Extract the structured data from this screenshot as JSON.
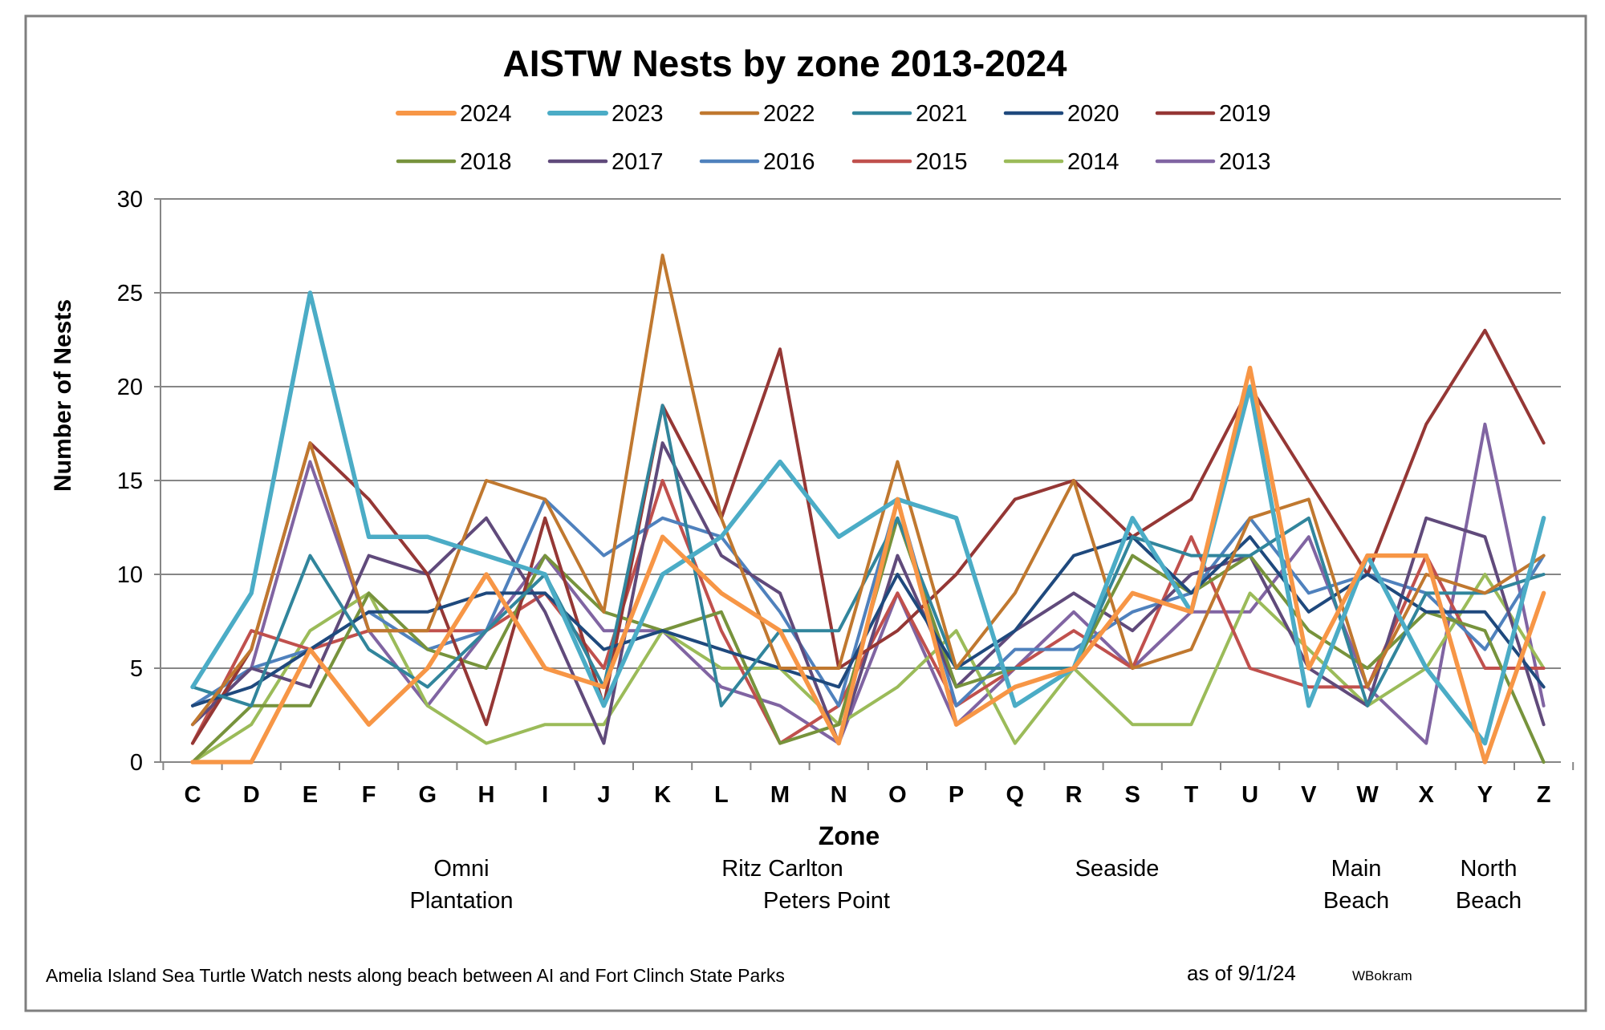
{
  "chart_data": {
    "type": "line",
    "title": "AISTW Nests by zone 2013-2024",
    "xlabel": "Zone",
    "ylabel": "Number of Nests",
    "ylim": [
      0,
      30
    ],
    "yticks": [
      0,
      5,
      10,
      15,
      20,
      25,
      30
    ],
    "grid": "horizontal",
    "legend_position": "top",
    "categories": [
      "C",
      "D",
      "E",
      "F",
      "G",
      "H",
      "I",
      "J",
      "K",
      "L",
      "M",
      "N",
      "O",
      "P",
      "Q",
      "R",
      "S",
      "T",
      "U",
      "V",
      "W",
      "X",
      "Y",
      "Z"
    ],
    "series": [
      {
        "name": "2024",
        "color": "#F79646",
        "values": [
          0,
          0,
          6,
          2,
          5,
          10,
          5,
          4,
          12,
          9,
          7,
          1,
          14,
          2,
          4,
          5,
          9,
          8,
          21,
          5,
          11,
          11,
          0,
          9
        ]
      },
      {
        "name": "2023",
        "color": "#4BACC6",
        "values": [
          4,
          9,
          25,
          12,
          12,
          11,
          10,
          3,
          10,
          12,
          16,
          12,
          14,
          13,
          3,
          5,
          13,
          8,
          20,
          3,
          11,
          5,
          1,
          13
        ]
      },
      {
        "name": "2022",
        "color": "#C0782F",
        "values": [
          2,
          6,
          17,
          7,
          7,
          15,
          14,
          8,
          27,
          13,
          5,
          5,
          16,
          5,
          9,
          15,
          5,
          6,
          13,
          14,
          4,
          10,
          9,
          11
        ]
      },
      {
        "name": "2021",
        "color": "#31859C",
        "values": [
          4,
          3,
          11,
          6,
          4,
          7,
          10,
          4,
          19,
          3,
          7,
          7,
          13,
          5,
          5,
          5,
          12,
          11,
          11,
          13,
          3,
          9,
          9,
          10
        ]
      },
      {
        "name": "2020",
        "color": "#1F497D",
        "values": [
          3,
          4,
          6,
          8,
          8,
          9,
          9,
          6,
          7,
          6,
          5,
          4,
          10,
          5,
          7,
          11,
          12,
          9,
          12,
          8,
          10,
          8,
          8,
          4
        ]
      },
      {
        "name": "2019",
        "color": "#953735",
        "values": [
          1,
          6,
          17,
          14,
          10,
          2,
          13,
          3,
          19,
          13,
          22,
          5,
          7,
          10,
          14,
          15,
          12,
          14,
          20,
          15,
          10,
          18,
          23,
          17
        ]
      },
      {
        "name": "2018",
        "color": "#77933C",
        "values": [
          0,
          3,
          3,
          9,
          6,
          5,
          11,
          8,
          7,
          8,
          1,
          2,
          13,
          4,
          5,
          5,
          11,
          9,
          11,
          7,
          5,
          8,
          7,
          0
        ]
      },
      {
        "name": "2017",
        "color": "#604A7B",
        "values": [
          2,
          5,
          4,
          11,
          10,
          13,
          8,
          1,
          17,
          11,
          9,
          1,
          11,
          4,
          7,
          9,
          7,
          10,
          11,
          5,
          3,
          13,
          12,
          2
        ]
      },
      {
        "name": "2016",
        "color": "#4F81BD",
        "values": [
          3,
          5,
          6,
          8,
          6,
          7,
          14,
          11,
          13,
          12,
          8,
          3,
          14,
          3,
          6,
          6,
          8,
          9,
          13,
          9,
          10,
          9,
          6,
          11
        ]
      },
      {
        "name": "2015",
        "color": "#C0504D",
        "values": [
          1,
          7,
          6,
          7,
          7,
          7,
          9,
          5,
          15,
          7,
          1,
          3,
          9,
          3,
          5,
          7,
          5,
          12,
          5,
          4,
          4,
          11,
          5,
          5
        ]
      },
      {
        "name": "2014",
        "color": "#9BBB59",
        "values": [
          0,
          2,
          7,
          9,
          3,
          1,
          2,
          2,
          7,
          5,
          5,
          2,
          4,
          7,
          1,
          5,
          2,
          2,
          9,
          6,
          3,
          5,
          10,
          5
        ]
      },
      {
        "name": "2013",
        "color": "#8064A2",
        "values": [
          3,
          5,
          16,
          7,
          3,
          7,
          11,
          7,
          7,
          4,
          3,
          1,
          9,
          2,
          5,
          8,
          5,
          8,
          8,
          12,
          4,
          1,
          18,
          3
        ]
      }
    ],
    "area_labels": [
      {
        "lines": [
          "Omni",
          "Plantation"
        ]
      },
      {
        "lines": [
          "Ritz Carlton"
        ]
      },
      {
        "lines": [
          "Peters Point"
        ]
      },
      {
        "lines": [
          "Seaside"
        ]
      },
      {
        "lines": [
          "Main",
          "Beach"
        ]
      },
      {
        "lines": [
          "North",
          "Beach"
        ]
      }
    ]
  },
  "footer": {
    "caption": "Amelia Island Sea Turtle Watch nests along beach between AI and Fort Clinch State Parks",
    "date": "as of  9/1/24",
    "author": "WBokram"
  }
}
